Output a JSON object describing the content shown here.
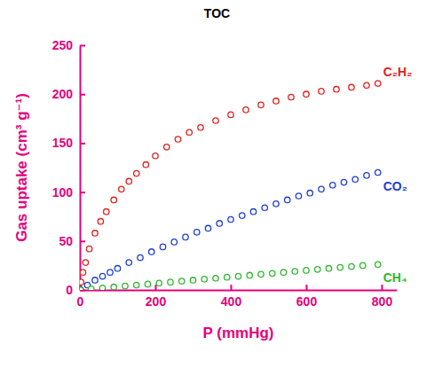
{
  "chart_data": {
    "type": "scatter",
    "title": "TOC",
    "x_label": "P (mmHg)",
    "y_label": "Gas uptake (cm³ g⁻¹)",
    "xlim": [
      0,
      840
    ],
    "xticks": [
      0,
      200,
      400,
      600,
      800
    ],
    "ylim": [
      0,
      250
    ],
    "yticks": [
      0,
      50,
      100,
      150,
      200,
      250
    ],
    "grid": false,
    "series": [
      {
        "name": "C₂H₂",
        "color": "#e0201c",
        "marker": "circle",
        "x": [
          3,
          8,
          15,
          25,
          40,
          55,
          70,
          90,
          110,
          130,
          150,
          175,
          200,
          230,
          260,
          290,
          320,
          360,
          400,
          440,
          480,
          520,
          560,
          600,
          640,
          680,
          720,
          760,
          790
        ],
        "values": [
          8,
          18,
          28,
          42,
          58,
          70,
          80,
          92,
          103,
          111,
          119,
          128,
          137,
          146,
          154,
          161,
          166,
          173,
          179,
          184,
          189,
          193,
          197,
          200,
          203,
          205,
          207,
          209,
          211
        ]
      },
      {
        "name": "CO₂",
        "color": "#1f3fd0",
        "marker": "circle",
        "x": [
          2,
          20,
          40,
          60,
          80,
          100,
          130,
          160,
          190,
          220,
          250,
          280,
          310,
          340,
          370,
          400,
          430,
          460,
          490,
          520,
          550,
          580,
          610,
          640,
          670,
          700,
          730,
          760,
          790
        ],
        "values": [
          0.5,
          5,
          10,
          14,
          18,
          22,
          28,
          33,
          39,
          44,
          49,
          54,
          59,
          63,
          68,
          72,
          76,
          80,
          84,
          88,
          92,
          96,
          99,
          103,
          107,
          110,
          113,
          117,
          120
        ]
      },
      {
        "name": "CH₄",
        "color": "#2db82d",
        "marker": "circle",
        "x": [
          2,
          30,
          60,
          90,
          120,
          150,
          180,
          210,
          240,
          270,
          300,
          330,
          360,
          390,
          420,
          450,
          480,
          510,
          540,
          570,
          600,
          630,
          660,
          690,
          720,
          750,
          790
        ],
        "values": [
          0,
          1,
          2,
          3,
          4,
          5,
          6,
          7,
          8,
          9,
          10,
          11,
          12,
          13,
          14,
          15,
          16,
          17,
          18,
          19,
          20,
          21,
          22,
          23,
          24,
          25,
          26
        ]
      }
    ]
  }
}
